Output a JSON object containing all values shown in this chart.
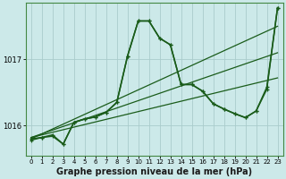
{
  "background_color": "#cce9e9",
  "grid_color": "#aacccc",
  "line_color": "#1a5c1a",
  "xlabel": "Graphe pression niveau de la mer (hPa)",
  "xlabel_fontsize": 7,
  "xlim": [
    -0.5,
    23.5
  ],
  "ylim": [
    1015.55,
    1017.85
  ],
  "yticks": [
    1016,
    1017
  ],
  "xticks": [
    0,
    1,
    2,
    3,
    4,
    5,
    6,
    7,
    8,
    9,
    10,
    11,
    12,
    13,
    14,
    15,
    16,
    17,
    18,
    19,
    20,
    21,
    22,
    23
  ],
  "series": [
    {
      "x": [
        0,
        1,
        2,
        3,
        4,
        5,
        6,
        7,
        8,
        9,
        10,
        11,
        12,
        13,
        14,
        15,
        16,
        17,
        18,
        19,
        20,
        21,
        22,
        23
      ],
      "y": [
        1015.78,
        1015.82,
        1015.86,
        1015.72,
        1016.05,
        1016.1,
        1016.13,
        1016.2,
        1016.35,
        1017.05,
        1017.58,
        1017.58,
        1017.32,
        1017.22,
        1016.62,
        1016.62,
        1016.52,
        1016.33,
        1016.25,
        1016.18,
        1016.12,
        1016.22,
        1016.58,
        1017.78
      ],
      "lw": 1.1,
      "marker": "+"
    },
    {
      "x": [
        0,
        23
      ],
      "y": [
        1015.8,
        1017.5
      ],
      "lw": 0.9,
      "marker": null
    },
    {
      "x": [
        0,
        23
      ],
      "y": [
        1015.82,
        1016.72
      ],
      "lw": 0.9,
      "marker": null
    },
    {
      "x": [
        0,
        23
      ],
      "y": [
        1015.82,
        1017.1
      ],
      "lw": 0.9,
      "marker": null
    },
    {
      "x": [
        0,
        1,
        2,
        3,
        4,
        5,
        6,
        7,
        8,
        9,
        10,
        11,
        12,
        13,
        14,
        15,
        16,
        17,
        18,
        19,
        20,
        21,
        22,
        23
      ],
      "y": [
        1015.8,
        1015.82,
        1015.84,
        1015.72,
        1016.05,
        1016.1,
        1016.13,
        1016.2,
        1016.35,
        1017.05,
        1017.58,
        1017.58,
        1017.32,
        1017.22,
        1016.62,
        1016.62,
        1016.52,
        1016.33,
        1016.25,
        1016.18,
        1016.12,
        1016.22,
        1016.55,
        1017.78
      ],
      "lw": 1.1,
      "marker": "+"
    }
  ]
}
